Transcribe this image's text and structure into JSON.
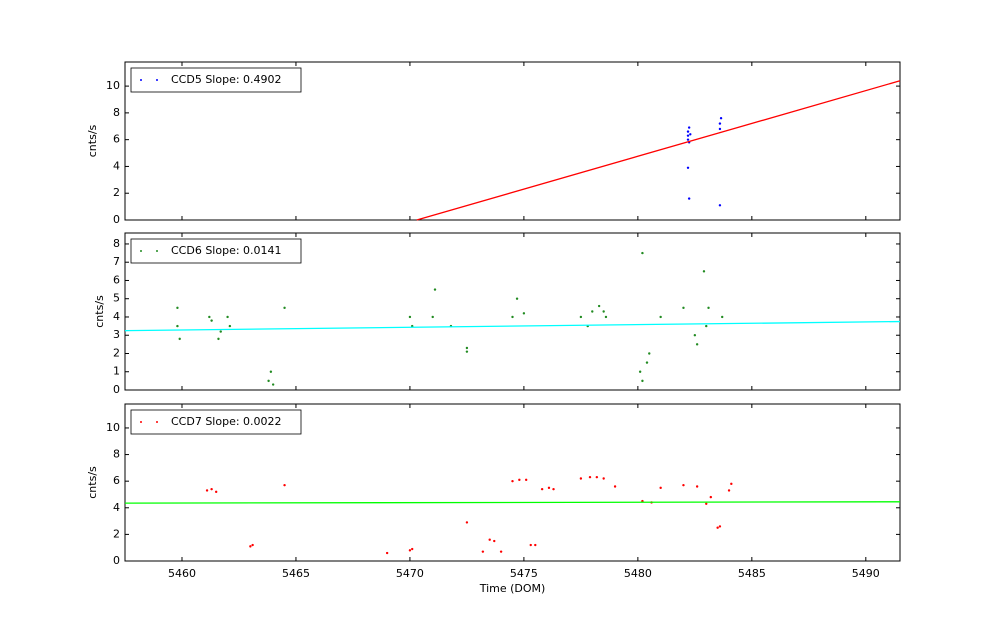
{
  "chart_data": [
    {
      "type": "scatter",
      "ylabel": "cnts/s",
      "xlim": [
        5457.5,
        5491.5
      ],
      "xticks": [
        5460,
        5465,
        5470,
        5475,
        5480,
        5485,
        5490
      ],
      "ylim": [
        0,
        11.8
      ],
      "yticks": [
        0,
        2,
        4,
        6,
        8,
        10
      ],
      "series": [
        {
          "name": "CCD5 Slope: 0.4902",
          "color": "#0000ff",
          "x": [
            5482.2,
            5482.2,
            5482.2,
            5482.25,
            5482.25,
            5482.3,
            5482.2,
            5482.25,
            5483.6,
            5483.6,
            5483.65,
            5483.6
          ],
          "values": [
            6.0,
            6.3,
            6.6,
            6.9,
            5.8,
            6.4,
            3.9,
            1.6,
            6.8,
            7.2,
            7.6,
            1.1
          ]
        }
      ],
      "fit_line": {
        "color": "#ff0000",
        "x": [
          5470.3,
          5491.5
        ],
        "values": [
          0,
          10.4
        ]
      }
    },
    {
      "type": "scatter",
      "ylabel": "cnts/s",
      "xlim": [
        5457.5,
        5491.5
      ],
      "xticks": [
        5460,
        5465,
        5470,
        5475,
        5480,
        5485,
        5490
      ],
      "ylim": [
        0,
        8.6
      ],
      "yticks": [
        0,
        1,
        2,
        3,
        4,
        5,
        6,
        7,
        8
      ],
      "series": [
        {
          "name": "CCD6 Slope: 0.0141",
          "color": "#228b22",
          "x": [
            5459.8,
            5459.9,
            5459.8,
            5461.2,
            5461.3,
            5461.6,
            5461.7,
            5462.0,
            5462.1,
            5463.8,
            5463.9,
            5464.0,
            5464.5,
            5470.0,
            5470.1,
            5471.0,
            5471.1,
            5471.8,
            5472.5,
            5472.5,
            5474.5,
            5474.7,
            5475.0,
            5477.5,
            5477.8,
            5478.0,
            5478.3,
            5478.5,
            5478.6,
            5480.1,
            5480.2,
            5480.4,
            5480.5,
            5480.2,
            5481.0,
            5482.0,
            5482.5,
            5482.6,
            5483.0,
            5483.1,
            5482.9,
            5483.7
          ],
          "values": [
            3.5,
            2.8,
            4.5,
            4.0,
            3.8,
            2.8,
            3.2,
            4.0,
            3.5,
            0.5,
            1.0,
            0.3,
            4.5,
            4.0,
            3.5,
            4.0,
            5.5,
            3.5,
            2.1,
            2.3,
            4.0,
            5.0,
            4.2,
            4.0,
            3.5,
            4.3,
            4.6,
            4.3,
            4.0,
            1.0,
            0.5,
            1.5,
            2.0,
            7.5,
            4.0,
            4.5,
            3.0,
            2.5,
            3.5,
            4.5,
            6.5,
            4.0
          ]
        }
      ],
      "fit_line": {
        "color": "#00ffff",
        "x": [
          5457.5,
          5491.5
        ],
        "values": [
          3.25,
          3.75
        ]
      }
    },
    {
      "type": "scatter",
      "ylabel": "cnts/s",
      "xlabel": "Time (DOM)",
      "xlim": [
        5457.5,
        5491.5
      ],
      "xticks": [
        5460,
        5465,
        5470,
        5475,
        5480,
        5485,
        5490
      ],
      "ylim": [
        0,
        11.8
      ],
      "yticks": [
        0,
        2,
        4,
        6,
        8,
        10
      ],
      "series": [
        {
          "name": "CCD7 Slope: 0.0022",
          "color": "#ff0000",
          "x": [
            5461.1,
            5461.3,
            5461.5,
            5463.0,
            5463.1,
            5464.5,
            5469.0,
            5470.0,
            5470.1,
            5472.5,
            5473.2,
            5473.5,
            5473.7,
            5474.0,
            5474.5,
            5474.8,
            5475.1,
            5475.3,
            5475.5,
            5475.8,
            5476.1,
            5476.3,
            5477.5,
            5477.9,
            5478.2,
            5478.5,
            5479.0,
            5480.2,
            5480.6,
            5481.0,
            5482.0,
            5482.6,
            5483.0,
            5483.2,
            5483.5,
            5483.6,
            5484.0,
            5484.1
          ],
          "values": [
            5.3,
            5.4,
            5.2,
            1.1,
            1.2,
            5.7,
            0.6,
            0.8,
            0.9,
            2.9,
            0.7,
            1.6,
            1.5,
            0.7,
            6.0,
            6.1,
            6.1,
            1.2,
            1.2,
            5.4,
            5.5,
            5.4,
            6.2,
            6.3,
            6.3,
            6.2,
            5.6,
            4.5,
            4.4,
            5.5,
            5.7,
            5.6,
            4.3,
            4.8,
            2.5,
            2.6,
            5.3,
            5.8
          ]
        }
      ],
      "fit_line": {
        "color": "#00ff00",
        "x": [
          5457.5,
          5491.5
        ],
        "values": [
          4.35,
          4.45
        ]
      }
    }
  ]
}
